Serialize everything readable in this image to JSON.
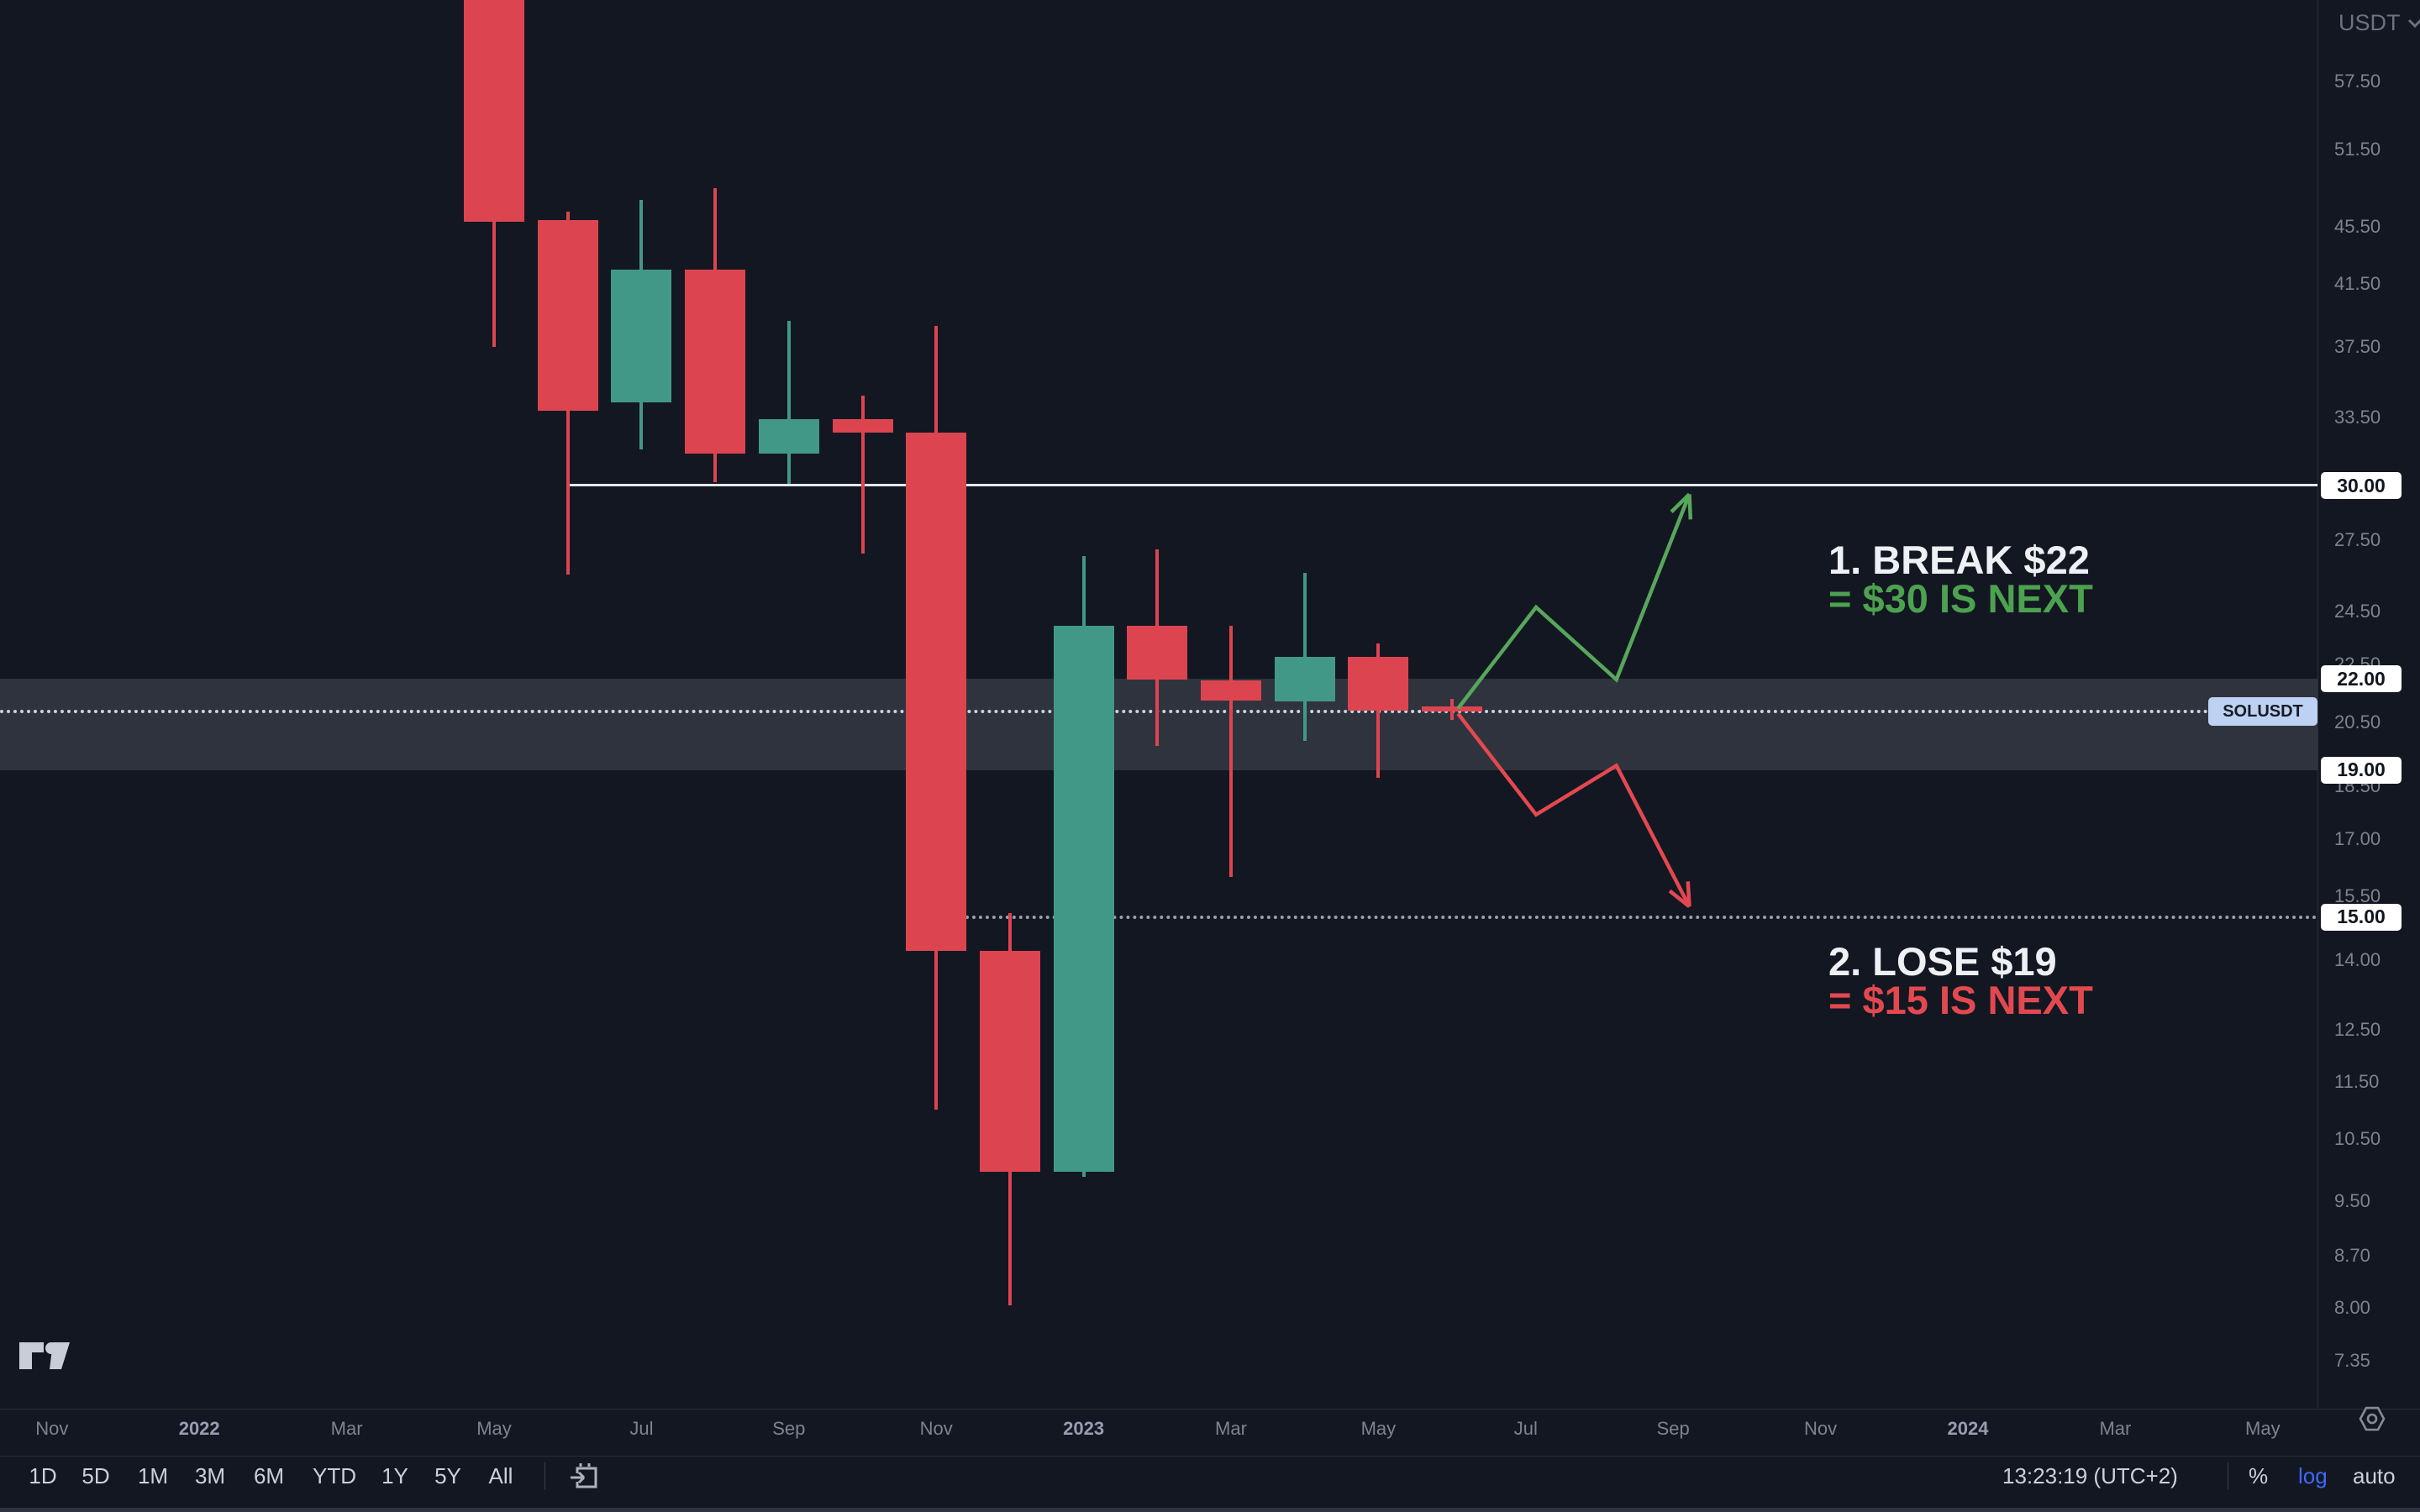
{
  "symbol_panel": {
    "quote_currency": "USDT"
  },
  "annotations": {
    "bullish_line1": "1. BREAK $22",
    "bullish_line2": "= $30 IS NEXT",
    "bearish_line1": "2. LOSE $19",
    "bearish_line2": "= $15 IS NEXT"
  },
  "price_scale": {
    "ticks": [
      57.5,
      51.5,
      45.5,
      41.5,
      37.5,
      33.5,
      27.5,
      24.5,
      22.5,
      20.5,
      18.5,
      17.0,
      15.5,
      14.0,
      12.5,
      11.5,
      10.5,
      9.5,
      8.7,
      8.0,
      7.35
    ],
    "price_boxes": [
      "30.00",
      "22.00",
      "19.00",
      "15.00"
    ],
    "symbol_badge": "SOLUSDT"
  },
  "time_scale": {
    "labels": [
      {
        "text": "Nov",
        "offset": -6,
        "year": false
      },
      {
        "text": "2022",
        "offset": -4,
        "year": true
      },
      {
        "text": "Mar",
        "offset": -2,
        "year": false
      },
      {
        "text": "May",
        "offset": 0,
        "year": false
      },
      {
        "text": "Jul",
        "offset": 2,
        "year": false
      },
      {
        "text": "Sep",
        "offset": 4,
        "year": false
      },
      {
        "text": "Nov",
        "offset": 6,
        "year": false
      },
      {
        "text": "2023",
        "offset": 8,
        "year": true
      },
      {
        "text": "Mar",
        "offset": 10,
        "year": false
      },
      {
        "text": "May",
        "offset": 12,
        "year": false
      },
      {
        "text": "Jul",
        "offset": 14,
        "year": false
      },
      {
        "text": "Sep",
        "offset": 16,
        "year": false
      },
      {
        "text": "Nov",
        "offset": 18,
        "year": false
      },
      {
        "text": "2024",
        "offset": 20,
        "year": true
      },
      {
        "text": "Mar",
        "offset": 22,
        "year": false
      },
      {
        "text": "May",
        "offset": 24,
        "year": false
      }
    ]
  },
  "toolbar": {
    "ranges": [
      "1D",
      "5D",
      "1M",
      "3M",
      "6M",
      "YTD",
      "1Y",
      "5Y",
      "All"
    ],
    "clock": "13:23:19 (UTC+2)",
    "percent_label": "%",
    "log_label": "log",
    "auto_label": "auto"
  },
  "chart_data": {
    "type": "candlestick",
    "symbol": "SOLUSDT",
    "interval": "1M",
    "scale": "log",
    "ylabel_boxes": [
      30.0,
      22.0,
      19.0,
      15.0
    ],
    "candles": [
      {
        "month": "May 2022",
        "o": 70.0,
        "h": 70.0,
        "l": 37.5,
        "c": 45.9
      },
      {
        "month": "Jun 2022",
        "o": 46.0,
        "h": 46.6,
        "l": 26.0,
        "c": 33.85
      },
      {
        "month": "Jul 2022",
        "o": 34.3,
        "h": 47.5,
        "l": 31.8,
        "c": 42.5
      },
      {
        "month": "Aug 2022",
        "o": 42.5,
        "h": 48.4,
        "l": 30.2,
        "c": 31.6
      },
      {
        "month": "Sep 2022",
        "o": 31.6,
        "h": 39.1,
        "l": 30.1,
        "c": 33.4
      },
      {
        "month": "Oct 2022",
        "o": 33.4,
        "h": 34.7,
        "l": 26.9,
        "c": 32.7
      },
      {
        "month": "Nov 2022",
        "o": 32.7,
        "h": 38.8,
        "l": 11.0,
        "c": 14.2
      },
      {
        "month": "Dec 2022",
        "o": 14.2,
        "h": 15.1,
        "l": 8.03,
        "c": 9.96
      },
      {
        "month": "Jan 2023",
        "o": 9.96,
        "h": 26.8,
        "l": 9.88,
        "c": 23.97
      },
      {
        "month": "Feb 2023",
        "o": 23.97,
        "h": 27.1,
        "l": 19.75,
        "c": 21.98
      },
      {
        "month": "Mar 2023",
        "o": 21.94,
        "h": 23.97,
        "l": 16.0,
        "c": 21.25
      },
      {
        "month": "Apr 2023",
        "o": 21.2,
        "h": 26.1,
        "l": 19.9,
        "c": 22.8
      },
      {
        "month": "May 2023",
        "o": 22.8,
        "h": 23.3,
        "l": 18.75,
        "c": 20.9
      },
      {
        "month": "Jun 2023",
        "o": 21.05,
        "h": 21.3,
        "l": 20.6,
        "c": 20.87
      }
    ],
    "levels": {
      "resistance": {
        "price": 30.0,
        "from_month": 1.0,
        "style": "solid"
      },
      "support": {
        "price": 15.0,
        "from_month": 6.4,
        "style": "dotted"
      },
      "current": {
        "price": 20.87,
        "from_month": null,
        "style": "dotted"
      }
    },
    "zone": {
      "from": 19.0,
      "to": 22.0
    },
    "projections": {
      "bullish": {
        "color": "#57a75b",
        "points": [
          {
            "m": 13.08,
            "p": 20.97
          },
          {
            "m": 14.14,
            "p": 24.68
          },
          {
            "m": 15.23,
            "p": 21.97
          },
          {
            "m": 16.22,
            "p": 29.6
          }
        ]
      },
      "bearish": {
        "color": "#e4484f",
        "points": [
          {
            "m": 13.08,
            "p": 20.8
          },
          {
            "m": 14.14,
            "p": 17.68
          },
          {
            "m": 15.23,
            "p": 19.13
          },
          {
            "m": 16.22,
            "p": 15.25
          }
        ]
      }
    }
  },
  "colors": {
    "background": "#131722",
    "candle_up": "#429886",
    "candle_down": "#dc4550",
    "bullish_text": "#4ca24f",
    "bearish_text": "#e2494f",
    "log_active": "#3f68fa"
  }
}
